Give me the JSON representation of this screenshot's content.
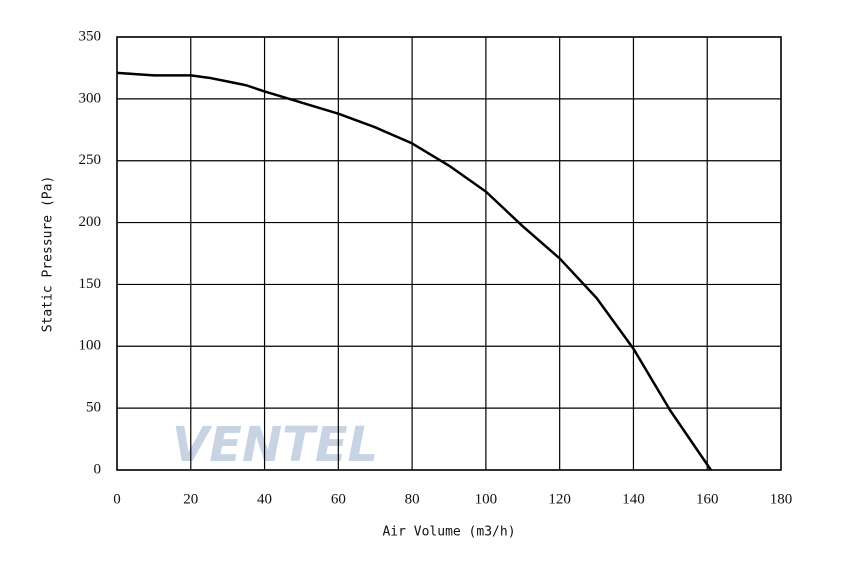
{
  "chart_data": {
    "type": "line",
    "x_label": "Air Volume  (m3/h)",
    "y_label": "Static Pressure (Pa)",
    "watermark": "VENTEL",
    "x": [
      0,
      5,
      10,
      20,
      25,
      30,
      35,
      40,
      50,
      60,
      70,
      80,
      90,
      100,
      110,
      120,
      130,
      140,
      150,
      161
    ],
    "series": [
      {
        "color": "#000000",
        "values": [
          321,
          320,
          319,
          319,
          317,
          314,
          311,
          306,
          297,
          288,
          277,
          264,
          246,
          225,
          197,
          171,
          139,
          98,
          48,
          0
        ]
      }
    ],
    "xlim": [
      0,
      180
    ],
    "xticks": [
      0,
      20,
      40,
      60,
      80,
      100,
      120,
      140,
      160,
      180
    ],
    "ylim": [
      0,
      350
    ],
    "yticks": [
      0,
      50,
      100,
      150,
      200,
      250,
      300,
      350
    ],
    "grid": true
  }
}
